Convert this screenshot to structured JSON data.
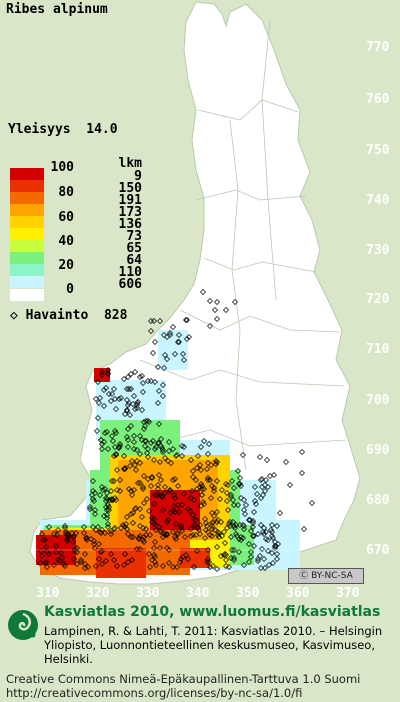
{
  "map": {
    "species": "Ribes alpinum",
    "prevalence_label": "Yleisyys",
    "prevalence_value": "14.0",
    "observation_label": "Havainto",
    "observation_count": "828",
    "legend": {
      "count_header": "lkm",
      "percent_labels": [
        "100",
        "80",
        "60",
        "40",
        "20",
        "0"
      ],
      "swatch_colors": [
        "#d20000",
        "#e83000",
        "#f46a00",
        "#ffa500",
        "#ffd200",
        "#fff000",
        "#c8ff3c",
        "#7cf07c",
        "#8cf5c8",
        "#c8f5ff"
      ],
      "counts": [
        "9",
        "150",
        "191",
        "173",
        "136",
        "73",
        "65",
        "64",
        "110",
        "606"
      ]
    },
    "y_ticks": [
      "770",
      "760",
      "750",
      "740",
      "730",
      "720",
      "710",
      "700",
      "690",
      "680",
      "670"
    ],
    "x_ticks": [
      "310",
      "320",
      "330",
      "340",
      "350",
      "360",
      "370"
    ],
    "license_badge": "BY-NC-SA"
  },
  "footer": {
    "brand": "Kasviatlas 2010, www.luomus.fi/kasviatlas",
    "reference": "Lampinen, R. & Lahti, T. 2011: Kasviatlas 2010. – Helsingin Yliopisto, Luonnontieteellinen keskusmuseo, Kasvimuseo, Helsinki.",
    "license_line1": "Creative Commons Nimeä-Epäkaupallinen-Tarttuva 1.0 Suomi",
    "license_line2": "http://creativecommons.org/licenses/by-nc-sa/1.0/fi"
  },
  "colors": {
    "background": "#d9e7c8",
    "land": "#ffffff",
    "brand_green": "#0f7a37"
  }
}
